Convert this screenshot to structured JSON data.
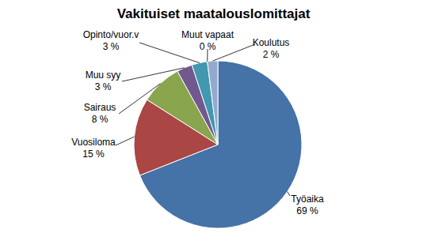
{
  "chart_data": {
    "type": "pie",
    "title": "Vakituiset maatalouslomittajat",
    "categories": [
      "Työaika",
      "Vuosiloma",
      "Sairaus",
      "Muu syy",
      "Opinto/vuor.v",
      "Muut vapaat",
      "Koulutus"
    ],
    "values": [
      69,
      15,
      8,
      3,
      3,
      0,
      2
    ],
    "value_labels": [
      "69 %",
      "15 %",
      "8 %",
      "3 %",
      "3 %",
      "0 %",
      "2 %"
    ],
    "colors": [
      "#4572A7",
      "#AA4643",
      "#89A54E",
      "#71588F",
      "#4198AF",
      "#DB843D",
      "#93A9CF"
    ],
    "data_labels": true
  }
}
